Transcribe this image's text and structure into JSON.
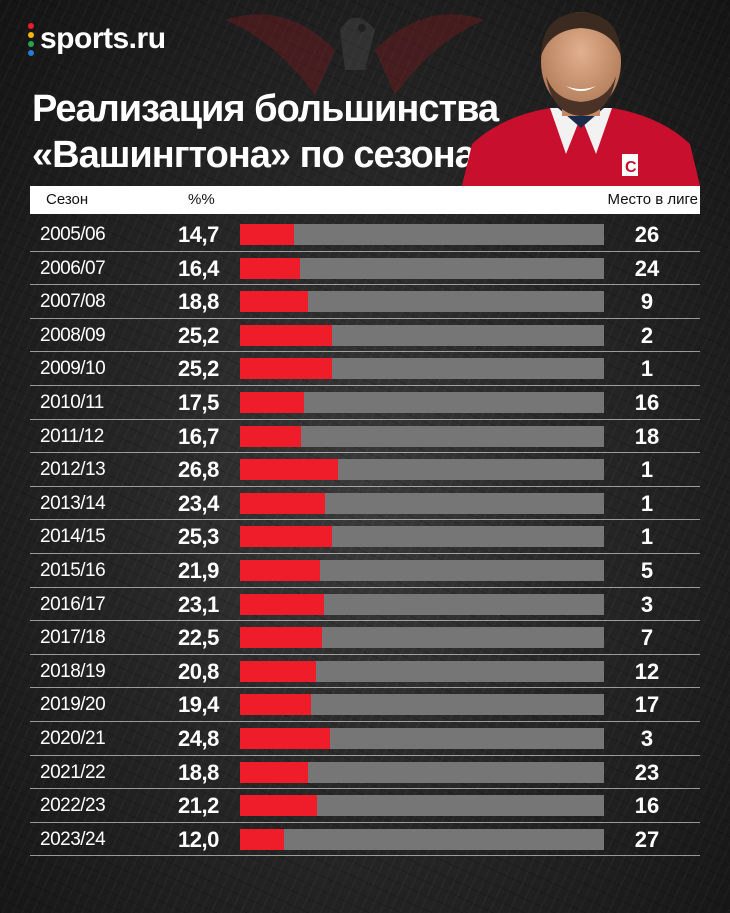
{
  "brand": {
    "name": "sports.ru",
    "dot_colors": [
      "#ef1d2a",
      "#f7b500",
      "#27a54a",
      "#2a7ad8"
    ]
  },
  "title": {
    "line1": "Реализация большинства",
    "line2": "«Вашингтона» по сезонам"
  },
  "table_header": {
    "season": "Сезон",
    "percent": "%%",
    "place": "Место в лиге"
  },
  "colors": {
    "bar": "#ef1d2a",
    "track": "#767676"
  },
  "chart_data": {
    "type": "bar",
    "orientation": "horizontal",
    "title": "Реализация большинства «Вашингтона» по сезонам",
    "columns": [
      "Сезон",
      "%%",
      "Место в лиге"
    ],
    "categories": [
      "2005/06",
      "2006/07",
      "2007/08",
      "2008/09",
      "2009/10",
      "2010/11",
      "2011/12",
      "2012/13",
      "2013/14",
      "2014/15",
      "2015/16",
      "2016/17",
      "2017/18",
      "2018/19",
      "2019/20",
      "2020/21",
      "2021/22",
      "2022/23",
      "2023/24"
    ],
    "values": [
      "14,7",
      "16,4",
      "18,8",
      "25,2",
      "25,2",
      "17,5",
      "16,7",
      "26,8",
      "23,4",
      "25,3",
      "21,9",
      "23,1",
      "22,5",
      "20,8",
      "19,4",
      "24,8",
      "18,8",
      "21,2",
      "12,0"
    ],
    "numeric_values": [
      14.7,
      16.4,
      18.8,
      25.2,
      25.2,
      17.5,
      16.7,
      26.8,
      23.4,
      25.3,
      21.9,
      23.1,
      22.5,
      20.8,
      19.4,
      24.8,
      18.8,
      21.2,
      12.0
    ],
    "places": [
      "26",
      "24",
      "9",
      "2",
      "1",
      "16",
      "18",
      "1",
      "1",
      "1",
      "5",
      "3",
      "7",
      "12",
      "17",
      "3",
      "23",
      "16",
      "27"
    ],
    "xlim": [
      0,
      100
    ]
  }
}
